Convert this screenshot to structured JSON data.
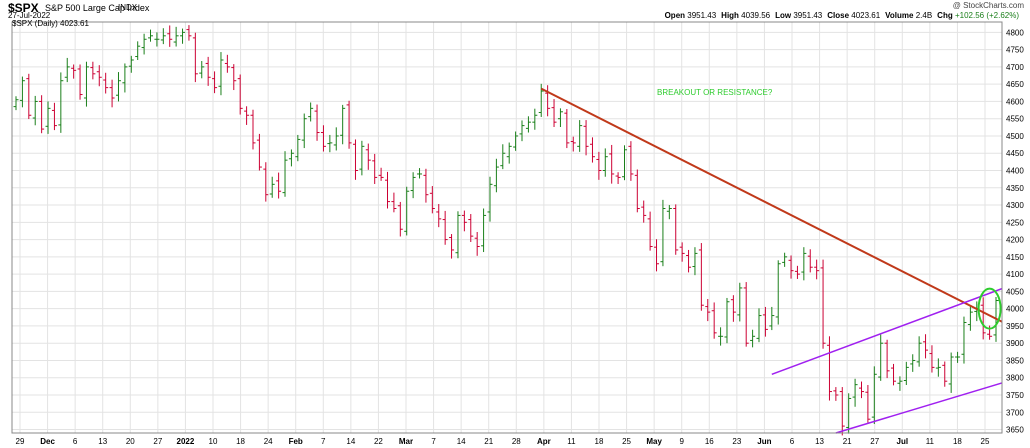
{
  "header": {
    "symbol": "$SPX",
    "name": "S&P 500 Large Cap Index",
    "exchange": "INDX",
    "date": "27-Jul-2022",
    "watermark": "@ StockCharts.com",
    "ohlc": [
      {
        "label": "Open",
        "value": "3951.43"
      },
      {
        "label": "High",
        "value": "4039.56"
      },
      {
        "label": "Low",
        "value": "3951.43"
      },
      {
        "label": "Close",
        "value": "4023.61"
      },
      {
        "label": "Volume",
        "value": "2.4B"
      },
      {
        "label": "Chg",
        "value": "+102.56 (+2.62%)"
      }
    ]
  },
  "colors": {
    "up": "#1a7f1a",
    "down": "#cc0033",
    "grid": "#e3e3e3",
    "resistance": "#c0391a",
    "channel": "#a020f0",
    "circle": "#2ecc2e"
  },
  "chart_data": {
    "type": "ohlc",
    "legend": "$SPX (Daily) 4023.61",
    "annotation": "BREAKOUT OR RESISTANCE?",
    "ylim": [
      3640,
      4830
    ],
    "y_ticks": [
      3650,
      3700,
      3750,
      3800,
      3850,
      3900,
      3950,
      4000,
      4050,
      4100,
      4150,
      4200,
      4250,
      4300,
      4350,
      4400,
      4450,
      4500,
      4550,
      4600,
      4650,
      4700,
      4750,
      4800
    ],
    "x_ticks": [
      {
        "label": "29",
        "month": false
      },
      {
        "label": "Dec",
        "month": true
      },
      {
        "label": "6",
        "month": false
      },
      {
        "label": "13",
        "month": false
      },
      {
        "label": "20",
        "month": false
      },
      {
        "label": "27",
        "month": false
      },
      {
        "label": "2022",
        "month": true
      },
      {
        "label": "10",
        "month": false
      },
      {
        "label": "18",
        "month": false
      },
      {
        "label": "24",
        "month": false
      },
      {
        "label": "Feb",
        "month": true
      },
      {
        "label": "7",
        "month": false
      },
      {
        "label": "14",
        "month": false
      },
      {
        "label": "22",
        "month": false
      },
      {
        "label": "Mar",
        "month": true
      },
      {
        "label": "7",
        "month": false
      },
      {
        "label": "14",
        "month": false
      },
      {
        "label": "21",
        "month": false
      },
      {
        "label": "28",
        "month": false
      },
      {
        "label": "Apr",
        "month": true
      },
      {
        "label": "11",
        "month": false
      },
      {
        "label": "18",
        "month": false
      },
      {
        "label": "25",
        "month": false
      },
      {
        "label": "May",
        "month": true
      },
      {
        "label": "9",
        "month": false
      },
      {
        "label": "16",
        "month": false
      },
      {
        "label": "23",
        "month": false
      },
      {
        "label": "Jun",
        "month": true
      },
      {
        "label": "6",
        "month": false
      },
      {
        "label": "13",
        "month": false
      },
      {
        "label": "21",
        "month": false
      },
      {
        "label": "27",
        "month": false
      },
      {
        "label": "Jul",
        "month": true
      },
      {
        "label": "11",
        "month": false
      },
      {
        "label": "18",
        "month": false
      },
      {
        "label": "25",
        "month": false
      }
    ],
    "series": [
      {
        "name": "$SPX (Daily)",
        "closes": [
          4605,
          4660,
          4560,
          4600,
          4520,
          4580,
          4530,
          4660,
          4700,
          4690,
          4620,
          4700,
          4680,
          4670,
          4640,
          4610,
          4660,
          4700,
          4720,
          4760,
          4780,
          4790,
          4780,
          4790,
          4780,
          4790,
          4800,
          4790,
          4680,
          4700,
          4670,
          4640,
          4720,
          4700,
          4660,
          4580,
          4560,
          4480,
          4410,
          4330,
          4360,
          4340,
          4430,
          4450,
          4490,
          4550,
          4580,
          4510,
          4470,
          4480,
          4500,
          4580,
          4480,
          4400,
          4470,
          4430,
          4380,
          4380,
          4310,
          4290,
          4230,
          4340,
          4380,
          4390,
          4330,
          4290,
          4260,
          4200,
          4170,
          4270,
          4250,
          4210,
          4180,
          4270,
          4360,
          4410,
          4450,
          4470,
          4500,
          4530,
          4540,
          4560,
          4630,
          4580,
          4540,
          4570,
          4480,
          4480,
          4530,
          4470,
          4440,
          4400,
          4440,
          4390,
          4380,
          4460,
          4390,
          4290,
          4270,
          4180,
          4130,
          4290,
          4290,
          4170,
          4160,
          4120,
          4160,
          4010,
          3990,
          3930,
          3920,
          4020,
          3990,
          4060,
          3900,
          3920,
          3980,
          3940,
          3980,
          4130,
          4150,
          4110,
          4100,
          4160,
          4120,
          4110,
          3900,
          3760,
          3750,
          3660,
          3740,
          3780,
          3760,
          3680,
          3810,
          3900,
          3820,
          3790,
          3790,
          3830,
          3850,
          3900,
          3880,
          3830,
          3830,
          3790,
          3860,
          3860,
          3960,
          3990,
          4000,
          3930,
          3920,
          4023.61
        ]
      }
    ]
  }
}
